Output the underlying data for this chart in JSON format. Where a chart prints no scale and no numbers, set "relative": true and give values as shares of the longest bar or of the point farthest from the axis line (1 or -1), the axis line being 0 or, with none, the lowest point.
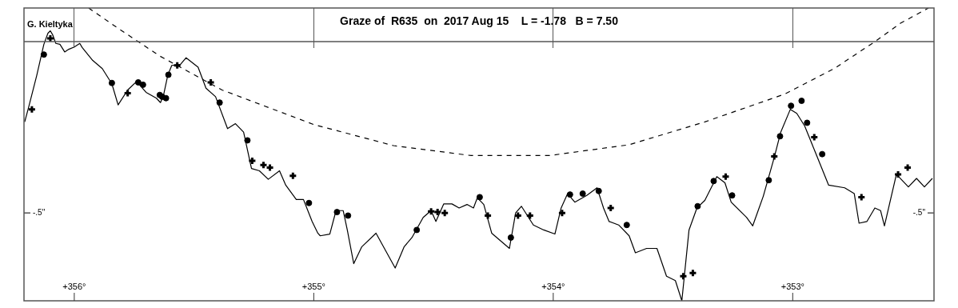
{
  "chart_data": {
    "type": "line",
    "title": "Graze of  R635  on  2017 Aug 15    L = -1.78   B = 7.50",
    "relative": true,
    "legend": false,
    "tick_labels": "x",
    "xlim": [
      356.21,
      352.41
    ],
    "xticks": [
      {
        "value": 356,
        "label": "+356°"
      },
      {
        "value": 355,
        "label": "+355°"
      },
      {
        "value": 354,
        "label": "+354°"
      },
      {
        "value": 353,
        "label": "+353°"
      }
    ],
    "annotations": [
      "G. Kieltyka",
      "-.5\"",
      "-.5\""
    ],
    "ref_lines": [
      {
        "axis": "y",
        "value": 0.885,
        "color": "#555555",
        "line_style": "solid"
      }
    ],
    "series": [
      {
        "color": "#000000",
        "marker": "none",
        "line_style": "solid",
        "x": [
          356.207,
          356.19,
          356.157,
          356.127,
          356.11,
          356.1,
          356.09,
          356.077,
          356.06,
          356.04,
          356.023,
          356.0,
          355.977,
          355.967,
          355.923,
          355.883,
          355.843,
          355.817,
          355.777,
          355.74,
          355.7,
          355.657,
          355.64,
          355.627,
          355.61,
          355.593,
          355.557,
          355.533,
          355.483,
          355.45,
          355.41,
          355.36,
          355.327,
          355.293,
          355.26,
          355.227,
          355.19,
          355.143,
          355.117,
          355.073,
          355.043,
          355.007,
          354.983,
          354.973,
          354.933,
          354.907,
          354.877,
          354.86,
          354.833,
          354.8,
          354.74,
          354.66,
          354.623,
          354.59,
          354.543,
          354.51,
          354.49,
          354.457,
          354.423,
          354.393,
          354.36,
          354.333,
          354.317,
          354.29,
          354.257,
          354.183,
          354.157,
          354.133,
          354.083,
          354.04,
          353.993,
          353.967,
          353.94,
          353.91,
          353.86,
          353.817,
          353.79,
          353.767,
          353.727,
          353.683,
          353.657,
          353.61,
          353.567,
          353.527,
          353.49,
          353.463,
          353.433,
          353.4,
          353.367,
          353.317,
          353.283,
          353.257,
          353.193,
          353.167,
          353.123,
          353.077,
          353.05,
          353.01,
          352.983,
          352.95,
          352.907,
          352.85,
          352.783,
          352.743,
          352.723,
          352.69,
          352.657,
          352.633,
          352.617,
          352.567,
          352.517,
          352.483,
          352.45,
          352.417
        ],
        "values": [
          0.611,
          0.663,
          0.769,
          0.876,
          0.914,
          0.922,
          0.908,
          0.879,
          0.876,
          0.85,
          0.859,
          0.867,
          0.879,
          0.865,
          0.821,
          0.793,
          0.741,
          0.669,
          0.72,
          0.749,
          0.712,
          0.692,
          0.677,
          0.703,
          0.769,
          0.804,
          0.807,
          0.83,
          0.798,
          0.726,
          0.697,
          0.588,
          0.605,
          0.576,
          0.452,
          0.444,
          0.415,
          0.444,
          0.395,
          0.346,
          0.346,
          0.271,
          0.231,
          0.222,
          0.228,
          0.308,
          0.308,
          0.242,
          0.127,
          0.184,
          0.231,
          0.112,
          0.184,
          0.216,
          0.285,
          0.308,
          0.271,
          0.331,
          0.331,
          0.317,
          0.329,
          0.317,
          0.352,
          0.329,
          0.231,
          0.179,
          0.3,
          0.323,
          0.259,
          0.242,
          0.228,
          0.317,
          0.366,
          0.337,
          0.36,
          0.386,
          0.317,
          0.271,
          0.259,
          0.222,
          0.164,
          0.179,
          0.179,
          0.084,
          0.069,
          0,
          0.242,
          0.317,
          0.343,
          0.424,
          0.403,
          0.337,
          0.285,
          0.256,
          0.357,
          0.49,
          0.576,
          0.654,
          0.64,
          0.597,
          0.51,
          0.395,
          0.386,
          0.366,
          0.265,
          0.271,
          0.317,
          0.308,
          0.256,
          0.432,
          0.389,
          0.418,
          0.389,
          0.418
        ]
      },
      {
        "type": "scatter",
        "color": "#000000",
        "marker": "circle",
        "x": [
          356.127,
          355.843,
          355.733,
          355.713,
          355.643,
          355.633,
          355.617,
          355.607,
          355.393,
          355.277,
          355.02,
          354.903,
          354.857,
          354.57,
          354.307,
          354.177,
          353.93,
          353.877,
          353.81,
          353.693,
          353.397,
          353.33,
          353.253,
          353.1,
          353.053,
          353.007,
          352.963,
          352.94,
          352.877
        ],
        "values": [
          0.841,
          0.744,
          0.746,
          0.738,
          0.703,
          0.697,
          0.692,
          0.772,
          0.677,
          0.548,
          0.334,
          0.303,
          0.291,
          0.242,
          0.354,
          0.216,
          0.363,
          0.366,
          0.375,
          0.259,
          0.323,
          0.409,
          0.36,
          0.412,
          0.562,
          0.666,
          0.683,
          0.608,
          0.501
        ]
      },
      {
        "type": "scatter",
        "color": "#000000",
        "marker": "cross",
        "x": [
          356.177,
          356.1,
          355.777,
          355.57,
          355.43,
          355.257,
          355.21,
          355.183,
          355.087,
          354.51,
          354.483,
          354.453,
          354.273,
          354.147,
          354.097,
          353.963,
          353.76,
          353.457,
          353.417,
          353.28,
          353.077,
          352.91,
          352.713,
          352.56,
          352.52
        ],
        "values": [
          0.654,
          0.896,
          0.709,
          0.804,
          0.746,
          0.478,
          0.464,
          0.455,
          0.427,
          0.305,
          0.303,
          0.3,
          0.291,
          0.291,
          0.291,
          0.3,
          0.317,
          0.084,
          0.095,
          0.424,
          0.493,
          0.559,
          0.354,
          0.432,
          0.455
        ]
      },
      {
        "color": "#000000",
        "marker": "none",
        "line_style": "dashed",
        "x": [
          355.94,
          355.823,
          355.643,
          355.383,
          355.0,
          354.667,
          354.343,
          354.017,
          353.683,
          353.367,
          353.033,
          352.827,
          352.657,
          352.55,
          352.433
        ],
        "values": [
          1,
          0.934,
          0.836,
          0.72,
          0.602,
          0.53,
          0.496,
          0.496,
          0.533,
          0.611,
          0.706,
          0.793,
          0.885,
          0.948,
          1
        ]
      }
    ]
  }
}
